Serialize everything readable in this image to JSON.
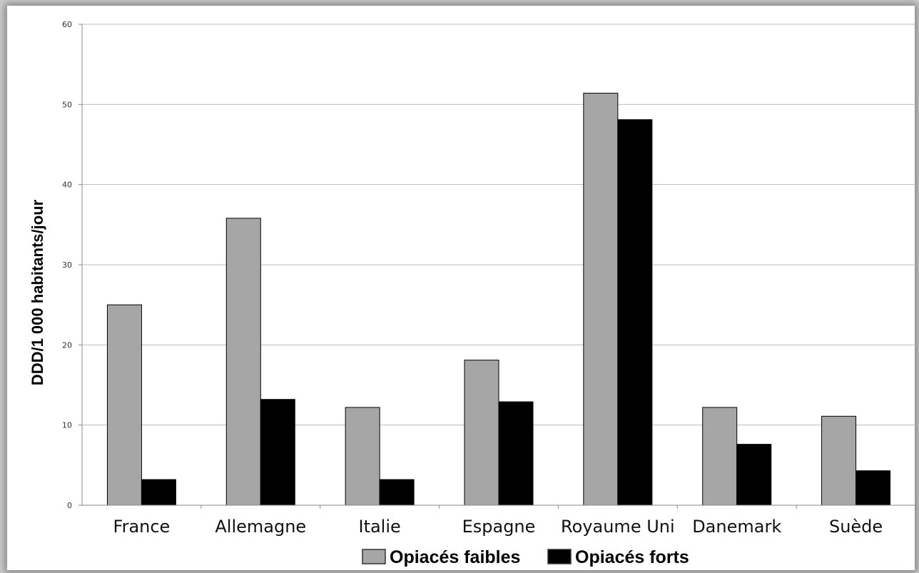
{
  "chart_data": {
    "type": "bar",
    "ylabel": "DDD/1 000 habitants/jour",
    "xlabel": "",
    "ylim": [
      0,
      60
    ],
    "yticks": [
      "0",
      "10",
      "20",
      "30",
      "40",
      "50",
      "60"
    ],
    "grid": true,
    "legend_position": "bottom",
    "categories": [
      "France",
      "Allemagne",
      "Italie",
      "Espagne",
      "Royaume Uni",
      "Danemark",
      "Suède"
    ],
    "series": [
      {
        "name": "Opiacés faibles",
        "color": "#a6a6a6",
        "values": [
          25,
          35.8,
          12.2,
          18.1,
          51.4,
          12.2,
          11.1
        ]
      },
      {
        "name": "Opiacés forts",
        "color": "#000000",
        "values": [
          3.2,
          13.2,
          3.2,
          12.9,
          48.1,
          7.6,
          4.3
        ]
      }
    ]
  }
}
